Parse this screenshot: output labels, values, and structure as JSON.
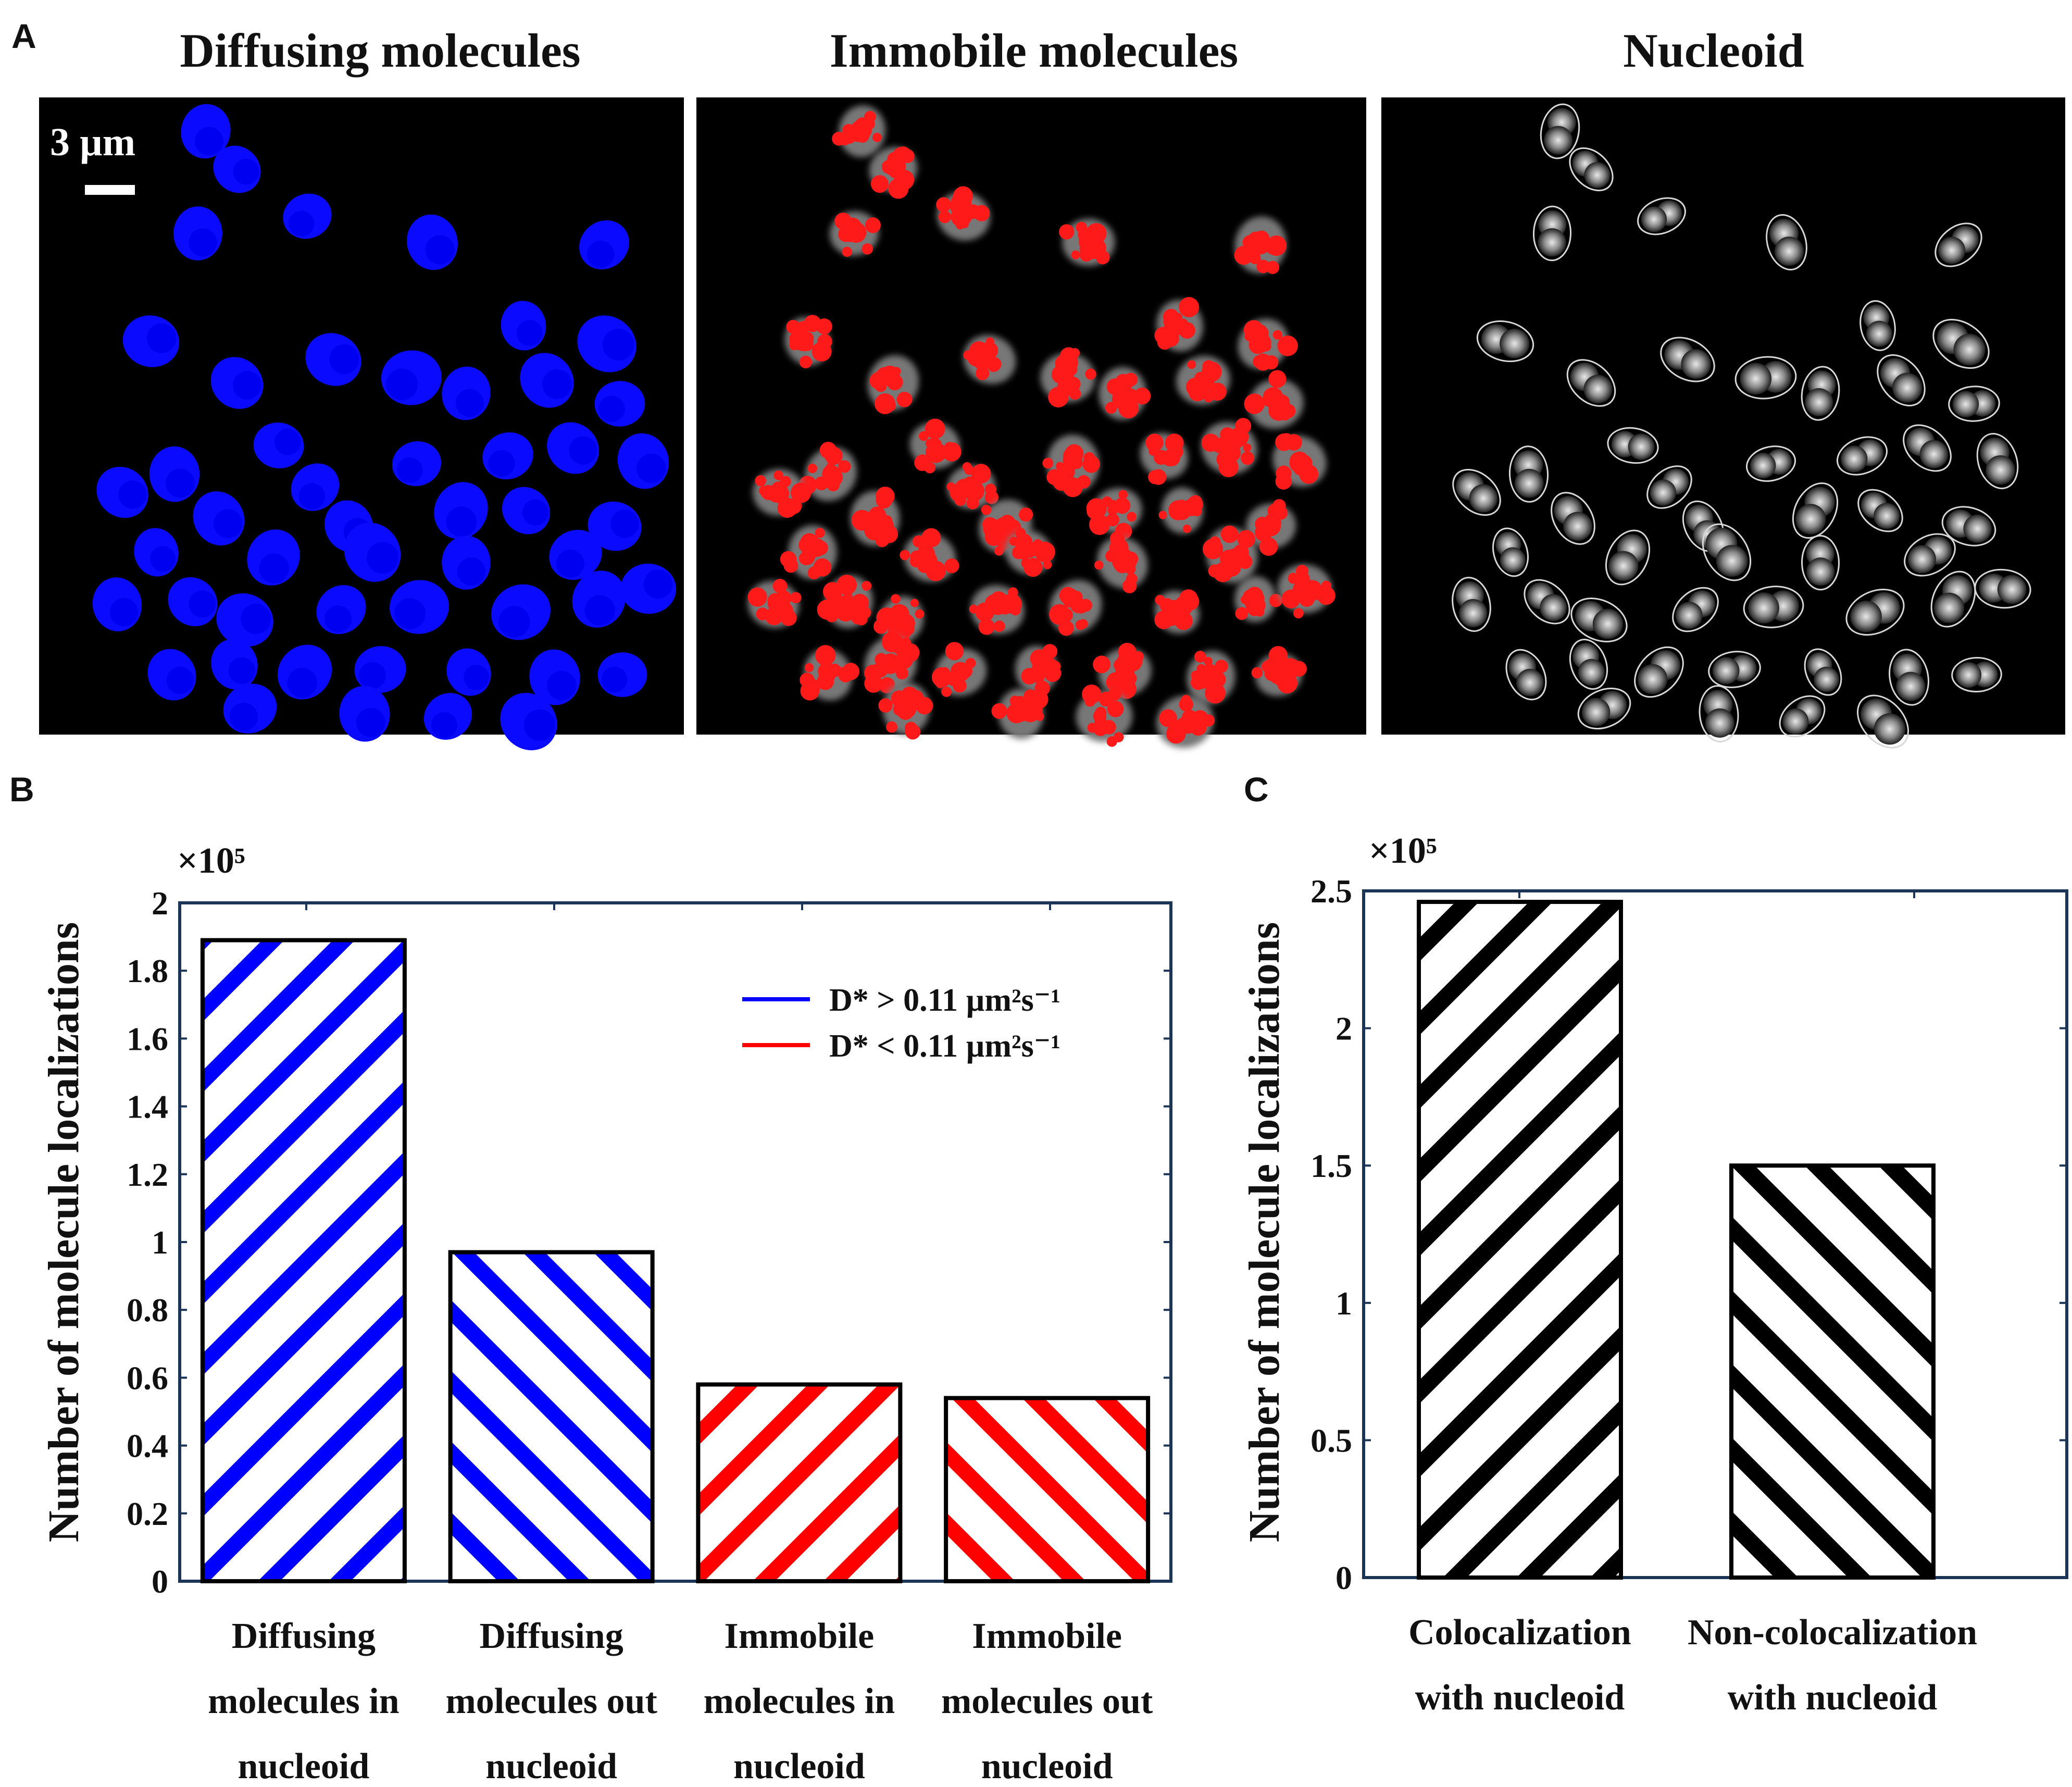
{
  "panel_letters": {
    "a": "A",
    "b": "B",
    "c": "C"
  },
  "panel_a": {
    "titles": [
      "Diffusing molecules",
      "Immobile molecules",
      "Nucleoid"
    ],
    "scale_bar_label": "3 µm",
    "colors": {
      "diffusing": "#0000ff",
      "immobile": "#ff1a1a",
      "nucleoid_outline": "#dddddd",
      "background": "#000000"
    }
  },
  "chart_data": [
    {
      "type": "bar",
      "panel": "B",
      "exponent_label": "×10⁵",
      "ylabel": "Number of molecule localizations",
      "ylim": [
        0,
        2
      ],
      "yticks": [
        "0",
        "0.2",
        "0.4",
        "0.6",
        "0.8",
        "1",
        "1.2",
        "1.4",
        "1.6",
        "1.8",
        "2"
      ],
      "categories": [
        [
          "Diffusing",
          "molecules in",
          "nucleoid"
        ],
        [
          "Diffusing",
          "molecules out",
          "nucleoid"
        ],
        [
          "Immobile",
          "molecules in",
          "nucleoid"
        ],
        [
          "Immobile",
          "molecules out",
          "nucleoid"
        ]
      ],
      "values": [
        1.89,
        0.97,
        0.58,
        0.54
      ],
      "bar_colors": [
        "#0000ff",
        "#0000ff",
        "#ff0000",
        "#ff0000"
      ],
      "hatch": [
        "forward",
        "backward",
        "forward",
        "backward"
      ],
      "legend": [
        {
          "label": "D* > 0.11 µm²s⁻¹",
          "color": "#0000ff"
        },
        {
          "label": "D* < 0.11 µm²s⁻¹",
          "color": "#ff0000"
        }
      ],
      "legend_position": "top-right"
    },
    {
      "type": "bar",
      "panel": "C",
      "exponent_label": "×10⁵",
      "ylabel": "Number of molecule localizations",
      "ylim": [
        0,
        2.5
      ],
      "yticks": [
        "0",
        "0.5",
        "1",
        "1.5",
        "2",
        "2.5"
      ],
      "categories": [
        [
          "Colocalization",
          "with nucleoid"
        ],
        [
          "Non-colocalization",
          "with nucleoid"
        ]
      ],
      "values": [
        2.46,
        1.5
      ],
      "bar_colors": [
        "#000000",
        "#000000"
      ],
      "hatch": [
        "forward",
        "backward"
      ]
    }
  ]
}
